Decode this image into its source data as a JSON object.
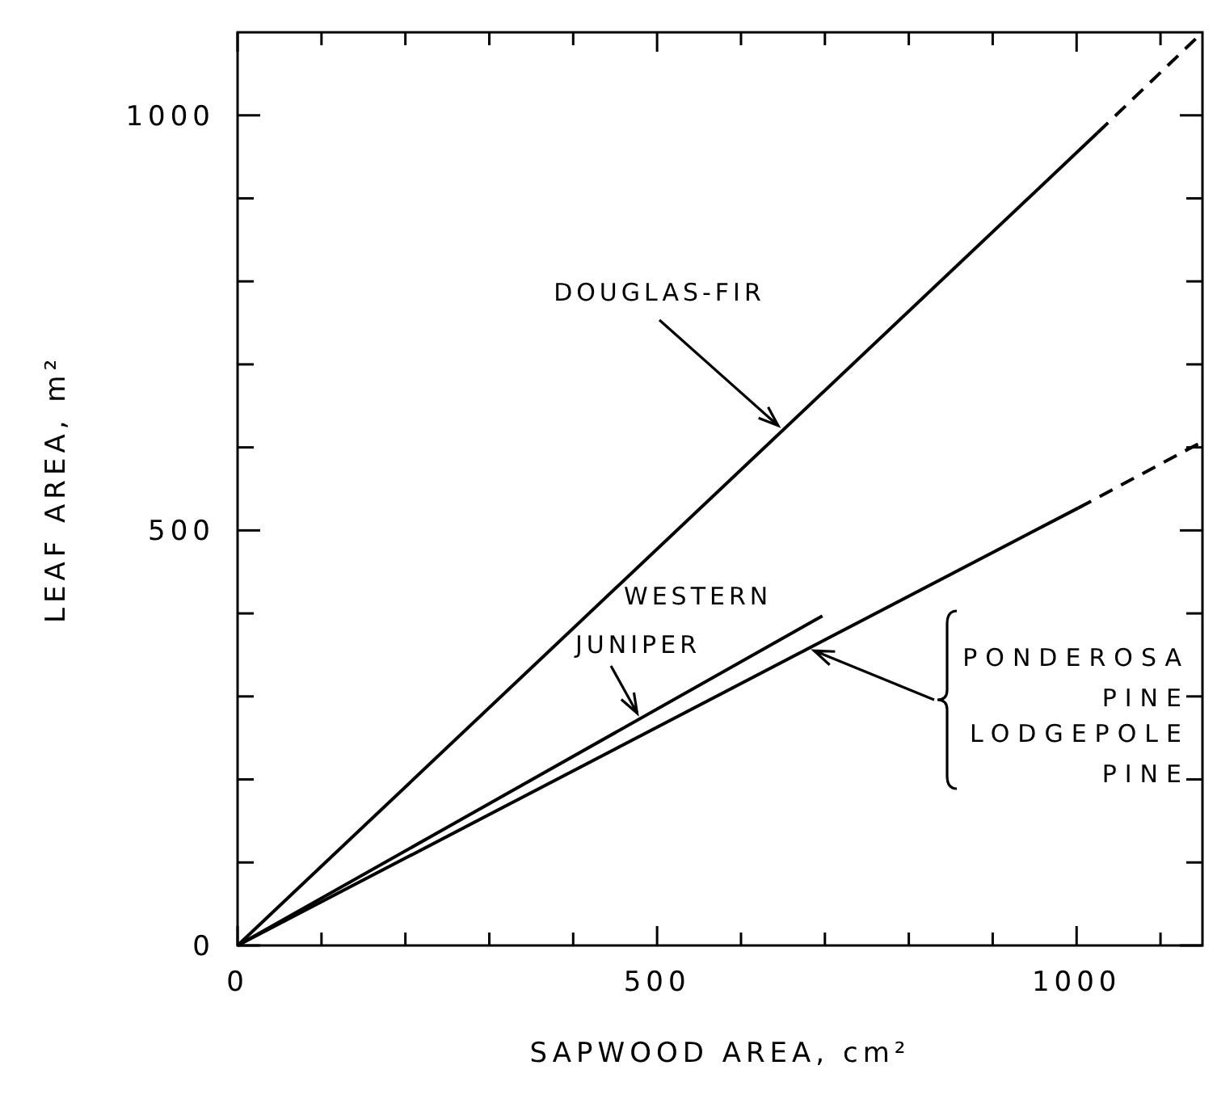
{
  "chart_data": {
    "type": "line",
    "xlabel": "SAPWOOD AREA, cm²",
    "ylabel": "LEAF AREA, m²",
    "xlim": [
      0,
      1150
    ],
    "ylim": [
      0,
      1100
    ],
    "xticks": [
      0,
      {
        "value": 100,
        "label": null
      },
      {
        "value": 200,
        "label": null
      },
      {
        "value": 300,
        "label": null
      },
      {
        "value": 400,
        "label": null
      },
      500,
      {
        "value": 600,
        "label": null
      },
      {
        "value": 700,
        "label": null
      },
      {
        "value": 800,
        "label": null
      },
      {
        "value": 900,
        "label": null
      },
      1000,
      {
        "value": 1100,
        "label": null
      }
    ],
    "yticks": [
      0,
      {
        "value": 100,
        "label": null
      },
      {
        "value": 200,
        "label": null
      },
      {
        "value": 300,
        "label": null
      },
      {
        "value": 400,
        "label": null
      },
      500,
      {
        "value": 600,
        "label": null
      },
      {
        "value": 700,
        "label": null
      },
      {
        "value": 800,
        "label": null
      },
      {
        "value": 900,
        "label": null
      },
      1000
    ],
    "grid": false,
    "marker": "none",
    "annotations": [
      {
        "text": "DOUGLAS-FIR",
        "x": 650,
        "y": 621
      },
      {
        "text": "WESTERN JUNIPER",
        "x": 480,
        "y": 273
      },
      {
        "text": "PONDEROSA PINE LODGEPOLE PINE",
        "x": 680,
        "y": 358
      }
    ],
    "series": [
      {
        "color": "#000000",
        "line_style": "solid",
        "x": [
          0,
          1025
        ],
        "values": [
          0,
          979
        ]
      },
      {
        "color": "#000000",
        "line_style": "dashed",
        "x": [
          1025,
          1150
        ],
        "values": [
          979,
          1100
        ]
      },
      {
        "color": "#000000",
        "line_style": "solid",
        "x": [
          0,
          697
        ],
        "values": [
          0,
          397
        ]
      },
      {
        "color": "#000000",
        "line_style": "solid",
        "x": [
          0,
          1002
        ],
        "values": [
          0,
          527
        ]
      },
      {
        "color": "#000000",
        "line_style": "dashed",
        "x": [
          1002,
          1150
        ],
        "values": [
          527,
          607
        ]
      }
    ]
  }
}
